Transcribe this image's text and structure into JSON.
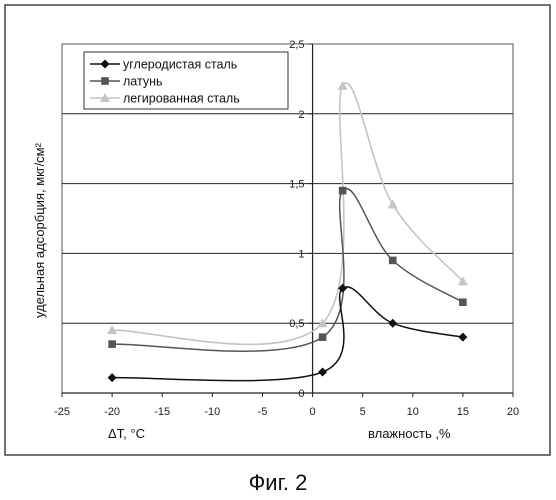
{
  "caption": "Фиг. 2",
  "chart_data": {
    "type": "line",
    "x_axis_labels": [
      "ΔT, °C",
      "влажность ,%"
    ],
    "ylabel": "удельная адсорбция, мкг/см²",
    "xlim": [
      -25,
      20
    ],
    "ylim": [
      0,
      2.5
    ],
    "x_ticks": [
      -25,
      -20,
      -15,
      -10,
      -5,
      0,
      5,
      10,
      15,
      20
    ],
    "y_ticks": [
      "0",
      "0,5",
      "1",
      "1,5",
      "2",
      "2,5"
    ],
    "y_tick_values": [
      0,
      0.5,
      1,
      1.5,
      2,
      2.5
    ],
    "grid": "horizontal",
    "legend": "top-left",
    "series": [
      {
        "name": "углеродистая сталь",
        "marker": "diamond",
        "color": "#111111",
        "points": [
          [
            -20,
            0.11
          ],
          [
            1,
            0.15
          ],
          [
            3,
            0.75
          ],
          [
            8,
            0.5
          ],
          [
            15,
            0.4
          ]
        ]
      },
      {
        "name": "латунь",
        "marker": "square",
        "color": "#555555",
        "points": [
          [
            -20,
            0.35
          ],
          [
            1,
            0.4
          ],
          [
            3,
            1.45
          ],
          [
            8,
            0.95
          ],
          [
            15,
            0.65
          ]
        ]
      },
      {
        "name": "легированная сталь",
        "marker": "triangle",
        "color": "#c4c4c4",
        "points": [
          [
            -20,
            0.45
          ],
          [
            1,
            0.5
          ],
          [
            3,
            2.2
          ],
          [
            8,
            1.35
          ],
          [
            15,
            0.8
          ]
        ]
      }
    ]
  }
}
